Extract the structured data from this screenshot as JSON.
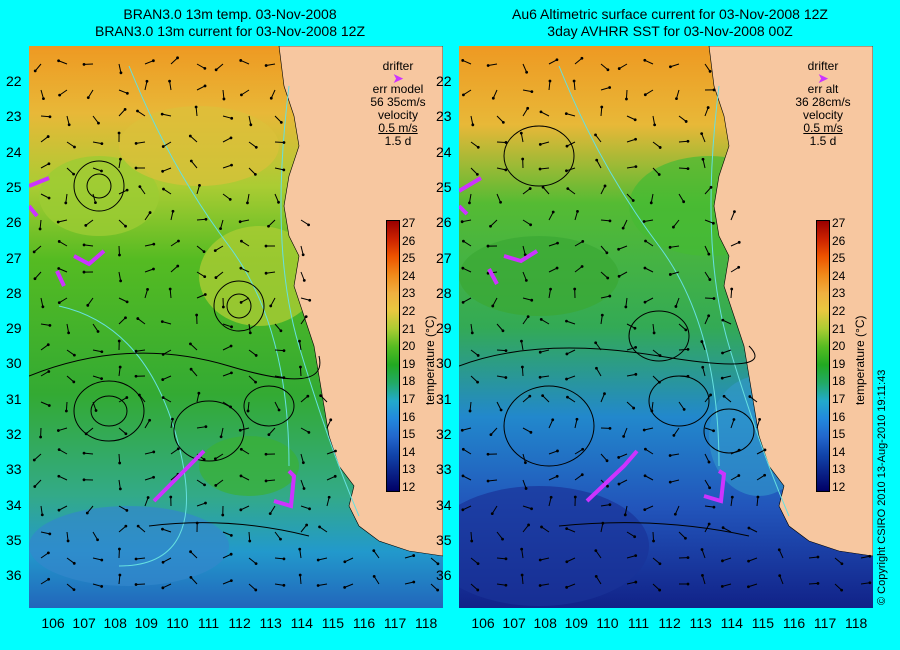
{
  "left_panel": {
    "title": "BRAN3.0 13m temp. 03-Nov-2008\nBRAN3.0 13m current for 03-Nov-2008 12Z",
    "legend": {
      "drifter": "drifter",
      "err_label": "err model",
      "err_value": "56 35cm/s",
      "velocity": "velocity",
      "speed": "0.5 m/s",
      "duration": "1.5 d"
    }
  },
  "right_panel": {
    "title": "Au6 Altimetric surface current for 03-Nov-2008 12Z\n3day AVHRR SST for 03-Nov-2008 00Z",
    "legend": {
      "drifter": "drifter",
      "err_label": "err alt",
      "err_value": "36 28cm/s",
      "velocity": "velocity",
      "speed": "0.5 m/s",
      "duration": "1.5 d"
    }
  },
  "latitude_labels": [
    "22",
    "23",
    "24",
    "25",
    "26",
    "27",
    "28",
    "29",
    "30",
    "31",
    "32",
    "33",
    "34",
    "35",
    "36"
  ],
  "longitude_labels": [
    "106",
    "107",
    "108",
    "109",
    "110",
    "111",
    "112",
    "113",
    "114",
    "115",
    "116",
    "117",
    "118"
  ],
  "colorbar": {
    "ticks": [
      "27",
      "26",
      "25",
      "24",
      "23",
      "22",
      "21",
      "20",
      "19",
      "18",
      "17",
      "16",
      "15",
      "14",
      "13",
      "12"
    ],
    "title": "temperature (°C)",
    "colors": [
      "#990000",
      "#cc2200",
      "#ee5500",
      "#f08a1a",
      "#f0b040",
      "#e8c840",
      "#aacc33",
      "#55bb22",
      "#22aa22",
      "#22aa66",
      "#22aacc",
      "#2288dd",
      "#2266cc",
      "#1144aa",
      "#0a2288",
      "#000066"
    ]
  },
  "copyright": "© Copyright CSIRO 2010   13-Aug-2010 19:11:43",
  "colors": {
    "background": "#00ffff",
    "land": "#f7c7a0",
    "drifter": "#cc33ff",
    "contour": "#66e0e0"
  }
}
